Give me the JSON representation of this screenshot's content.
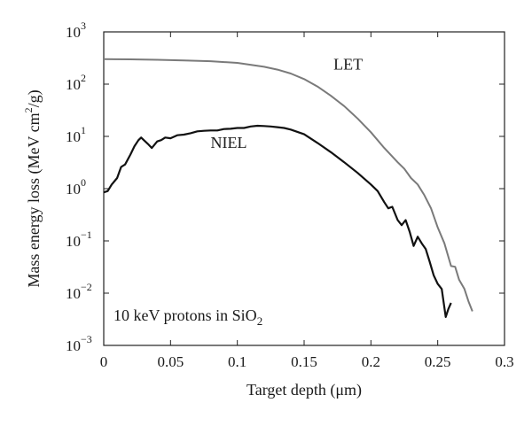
{
  "chart_data": {
    "type": "line",
    "title": "",
    "xlabel": "Target depth (μm)",
    "ylabel": "Mass energy loss (MeV cm²/g)",
    "x_scale": "linear",
    "y_scale": "log",
    "xlim": [
      0,
      0.3
    ],
    "ylim": [
      0.001,
      1000
    ],
    "grid": false,
    "x_ticks": [
      {
        "value": 0,
        "label": "0"
      },
      {
        "value": 0.05,
        "label": "0.05"
      },
      {
        "value": 0.1,
        "label": "0.1"
      },
      {
        "value": 0.15,
        "label": "0.15"
      },
      {
        "value": 0.2,
        "label": "0.2"
      },
      {
        "value": 0.25,
        "label": "0.25"
      },
      {
        "value": 0.3,
        "label": "0.3"
      }
    ],
    "y_ticks": [
      {
        "value": 0.001,
        "base": "10",
        "exp": "−3"
      },
      {
        "value": 0.01,
        "base": "10",
        "exp": "−2"
      },
      {
        "value": 0.1,
        "base": "10",
        "exp": "−1"
      },
      {
        "value": 1,
        "base": "10",
        "exp": "0"
      },
      {
        "value": 10,
        "base": "10",
        "exp": "1"
      },
      {
        "value": 100,
        "base": "10",
        "exp": "2"
      },
      {
        "value": 1000,
        "base": "10",
        "exp": "3"
      }
    ],
    "series": [
      {
        "name": "LET",
        "color": "#7a7a7a",
        "label_pos": {
          "x": 0.172,
          "y": 190
        },
        "x": [
          0,
          0.02,
          0.04,
          0.06,
          0.08,
          0.1,
          0.12,
          0.13,
          0.14,
          0.15,
          0.16,
          0.17,
          0.18,
          0.19,
          0.2,
          0.21,
          0.22,
          0.225,
          0.23,
          0.235,
          0.24,
          0.245,
          0.25,
          0.255,
          0.26,
          0.263,
          0.266,
          0.27,
          0.273,
          0.276
        ],
        "y": [
          300,
          298,
          292,
          285,
          275,
          255,
          215,
          190,
          160,
          125,
          90,
          60,
          38,
          22,
          12,
          6,
          3.2,
          2.4,
          1.6,
          1.2,
          0.75,
          0.42,
          0.18,
          0.09,
          0.033,
          0.032,
          0.018,
          0.012,
          0.007,
          0.0045
        ]
      },
      {
        "name": "NIEL",
        "color": "#111111",
        "label_pos": {
          "x": 0.08,
          "y": 6
        },
        "x": [
          0,
          0.003,
          0.006,
          0.01,
          0.013,
          0.016,
          0.02,
          0.023,
          0.026,
          0.028,
          0.03,
          0.033,
          0.036,
          0.04,
          0.043,
          0.046,
          0.05,
          0.055,
          0.06,
          0.065,
          0.07,
          0.075,
          0.08,
          0.085,
          0.09,
          0.095,
          0.1,
          0.105,
          0.11,
          0.115,
          0.12,
          0.125,
          0.13,
          0.135,
          0.14,
          0.15,
          0.16,
          0.17,
          0.18,
          0.19,
          0.2,
          0.205,
          0.21,
          0.213,
          0.216,
          0.22,
          0.223,
          0.226,
          0.229,
          0.232,
          0.235,
          0.238,
          0.241,
          0.244,
          0.247,
          0.25,
          0.253,
          0.256,
          0.258,
          0.26
        ],
        "y": [
          0.85,
          0.9,
          1.2,
          1.6,
          2.6,
          2.9,
          4.5,
          6.5,
          8.5,
          9.5,
          8.5,
          7.2,
          6,
          8,
          8.5,
          9.5,
          9.2,
          10.5,
          10.8,
          11.5,
          12.5,
          12.8,
          13,
          13,
          13.8,
          14,
          14.5,
          14.5,
          15.5,
          16,
          15.8,
          15.5,
          15,
          14.5,
          13.5,
          11,
          7.5,
          5,
          3.2,
          2,
          1.2,
          0.9,
          0.55,
          0.42,
          0.45,
          0.25,
          0.2,
          0.25,
          0.15,
          0.08,
          0.12,
          0.09,
          0.07,
          0.04,
          0.022,
          0.015,
          0.012,
          0.0035,
          0.005,
          0.0065
        ]
      }
    ],
    "annotation": {
      "parts": [
        {
          "text": "10 keV protons in SiO"
        },
        {
          "text": "2",
          "sub": true
        }
      ]
    }
  }
}
